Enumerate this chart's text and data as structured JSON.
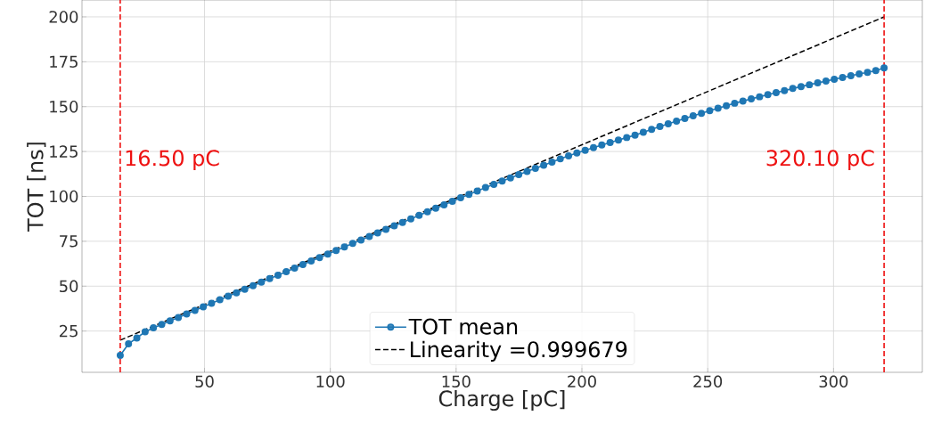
{
  "chart_data": {
    "type": "line",
    "xlabel": "Charge [pC]",
    "ylabel": "TOT [ns]",
    "xlim": [
      1.3,
      335.3
    ],
    "ylim": [
      2,
      209.4
    ],
    "xticks": [
      50,
      100,
      150,
      200,
      250,
      300
    ],
    "yticks": [
      25,
      50,
      75,
      100,
      125,
      150,
      175,
      200
    ],
    "grid": true,
    "legend": "bottom",
    "series": [
      {
        "name": "TOT mean",
        "color": "#1f77b4",
        "marker": "circle",
        "line_style": "solid",
        "x": [
          16.5,
          19.8,
          23.1,
          26.4,
          29.7,
          33.0,
          36.3,
          39.6,
          42.9,
          46.2,
          49.5,
          52.8,
          56.1,
          59.4,
          62.7,
          66.0,
          69.3,
          72.6,
          75.9,
          79.2,
          82.5,
          85.8,
          89.1,
          92.4,
          95.7,
          99.0,
          102.3,
          105.6,
          108.9,
          112.2,
          115.5,
          118.8,
          122.1,
          125.4,
          128.7,
          132.0,
          135.3,
          138.6,
          141.9,
          145.2,
          148.5,
          151.8,
          155.1,
          158.4,
          161.7,
          165.0,
          168.3,
          171.6,
          174.9,
          178.2,
          181.5,
          184.8,
          188.1,
          191.4,
          194.7,
          198.0,
          201.3,
          204.6,
          207.9,
          211.2,
          214.5,
          217.8,
          221.1,
          224.4,
          227.7,
          231.0,
          234.3,
          237.6,
          240.9,
          244.2,
          247.5,
          250.8,
          254.1,
          257.4,
          260.7,
          264.0,
          267.3,
          270.6,
          273.9,
          277.2,
          280.5,
          283.8,
          287.1,
          290.4,
          293.7,
          297.0,
          300.3,
          303.6,
          306.9,
          310.2,
          313.5,
          316.8,
          320.1
        ],
        "values": [
          11.4,
          17.9,
          21.1,
          24.6,
          26.8,
          28.7,
          30.6,
          32.5,
          34.5,
          36.5,
          38.5,
          40.5,
          42.4,
          44.4,
          46.3,
          48.3,
          50.3,
          52.2,
          54.2,
          56.1,
          58.1,
          60.1,
          62.0,
          64.0,
          65.9,
          67.9,
          69.9,
          71.8,
          73.8,
          75.7,
          77.7,
          79.7,
          81.6,
          83.6,
          85.5,
          87.5,
          89.5,
          91.4,
          93.4,
          95.3,
          97.3,
          99.2,
          101.1,
          103.0,
          104.9,
          106.7,
          108.5,
          110.3,
          112.1,
          113.9,
          115.6,
          117.4,
          119.1,
          120.9,
          122.6,
          124.2,
          125.7,
          127.2,
          128.6,
          130.0,
          131.4,
          132.8,
          134.1,
          135.7,
          137.3,
          138.9,
          140.4,
          141.9,
          143.4,
          144.9,
          146.3,
          147.7,
          149.1,
          150.5,
          151.9,
          153.1,
          154.3,
          155.5,
          156.7,
          157.8,
          158.9,
          160.1,
          161.2,
          162.2,
          163.2,
          164.2,
          165.2,
          166.2,
          167.2,
          168.2,
          169.1,
          170.1,
          171.6
        ]
      },
      {
        "name": "Linearity =0.999679",
        "color": "#000000",
        "marker": "none",
        "line_style": "dashed",
        "x": [
          16.5,
          320.1
        ],
        "values": [
          19.9,
          200
        ]
      }
    ],
    "ref_lines": [
      {
        "axis": "x",
        "value": 16.5,
        "label": "16.50 pC",
        "color": "#ee1111",
        "line_style": "dashed"
      },
      {
        "axis": "x",
        "value": 320.1,
        "label": "320.10 pC",
        "color": "#ee1111",
        "line_style": "dashed"
      }
    ]
  }
}
